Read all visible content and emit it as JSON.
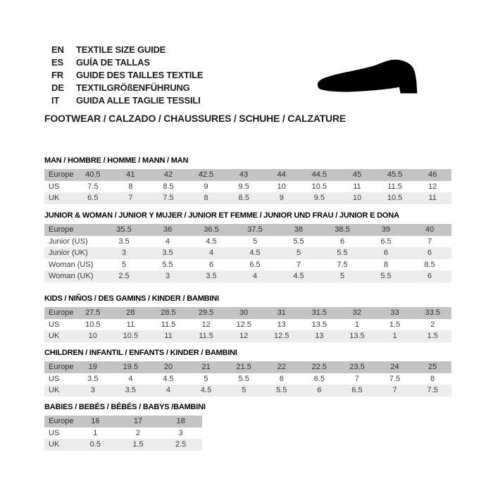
{
  "header": {
    "languages": [
      {
        "code": "EN",
        "text": "TEXTILE SIZE GUIDE"
      },
      {
        "code": "ES",
        "text": "GUÍA DE TALLAS"
      },
      {
        "code": "FR",
        "text": "GUIDE DES TAILLES TEXTILE"
      },
      {
        "code": "DE",
        "text": "TEXTILGRÖßENFÜHRUNG"
      },
      {
        "code": "IT",
        "text": "GUIDA ALLE TAGLIE TESSILI"
      }
    ],
    "shoe_icon": "dress-shoe-silhouette",
    "category_heading": "FOOTWEAR / CALZADO / CHAUSSURES / SCHUHE / CALZATURE"
  },
  "colors": {
    "table_header_row_bg": "#c3c3c3",
    "table_stripe_row_bg": "#ececec",
    "table_white_row_bg": "#ffffff",
    "text": "#1d1d1b",
    "shoe_fill": "#000000"
  },
  "tables": [
    {
      "id": "man",
      "title": "MAN / HOMBRE / HOMME / MANN / MAN",
      "rows": [
        {
          "label": "Europe",
          "header": true,
          "values": [
            "40.5",
            "41",
            "42",
            "42.5",
            "43",
            "44",
            "44.5",
            "45",
            "45.5",
            "46"
          ]
        },
        {
          "label": "US",
          "header": false,
          "values": [
            "7.5",
            "8",
            "8.5",
            "9",
            "9.5",
            "10",
            "10.5",
            "11",
            "11.5",
            "12"
          ]
        },
        {
          "label": "UK",
          "header": false,
          "values": [
            "6.5",
            "7",
            "7.5",
            "8",
            "8.5",
            "9",
            "9.5",
            "10",
            "10.5",
            "11"
          ]
        }
      ]
    },
    {
      "id": "junior",
      "title": "JUNIOR & WOMAN / JUNIOR Y MUJER / JUNIOR ET FEMME / JUNIOR UND FRAU / JUNIOR E DONA",
      "rows": [
        {
          "label": "Europe",
          "header": true,
          "values": [
            "35.5",
            "36",
            "36.5",
            "37.5",
            "38",
            "38.5",
            "39",
            "40"
          ]
        },
        {
          "label": "Junior (US)",
          "header": false,
          "values": [
            "3.5",
            "4",
            "4.5",
            "5",
            "5.5",
            "6",
            "6.5",
            "7"
          ]
        },
        {
          "label": "Junior (UK)",
          "header": false,
          "values": [
            "3",
            "3.5",
            "4",
            "4.5",
            "5",
            "5.5",
            "6",
            "6"
          ]
        },
        {
          "label": "Woman (US)",
          "header": false,
          "values": [
            "5",
            "5.5",
            "6",
            "6.5",
            "7",
            "7.5",
            "8",
            "8.5"
          ]
        },
        {
          "label": "Woman (UK)",
          "header": false,
          "values": [
            "2.5",
            "3",
            "3.5",
            "4",
            "4.5",
            "5",
            "5.5",
            "6"
          ]
        }
      ]
    },
    {
      "id": "kids",
      "title": "KIDS / NIÑOS / DES GAMINS / KINDER / BAMBINI",
      "rows": [
        {
          "label": "Europe",
          "header": true,
          "values": [
            "27.5",
            "28",
            "28.5",
            "29.5",
            "30",
            "31",
            "31.5",
            "32",
            "33",
            "33.5"
          ]
        },
        {
          "label": "US",
          "header": false,
          "values": [
            "10.5",
            "11",
            "11.5",
            "12",
            "12.5",
            "13",
            "13.5",
            "1",
            "1.5",
            "2"
          ]
        },
        {
          "label": "UK",
          "header": false,
          "values": [
            "10",
            "10.5",
            "11",
            "11.5",
            "12",
            "12.5",
            "13",
            "13.5",
            "1",
            "1.5"
          ]
        }
      ]
    },
    {
      "id": "children",
      "title": "CHILDREN / INFANTIL / ENFANTS / KINDER / BAMBINI",
      "rows": [
        {
          "label": "Europe",
          "header": true,
          "values": [
            "19",
            "19.5",
            "20",
            "21",
            "21.5",
            "22",
            "22.5",
            "23.5",
            "24",
            "25"
          ]
        },
        {
          "label": "US",
          "header": false,
          "values": [
            "3.5",
            "4",
            "4.5",
            "5",
            "5.5",
            "6",
            "6.5",
            "7",
            "7.5",
            "8"
          ]
        },
        {
          "label": "UK",
          "header": false,
          "values": [
            "3",
            "3.5",
            "4",
            "4.5",
            "5",
            "5.5",
            "6",
            "6.5",
            "7",
            "7.5"
          ]
        }
      ]
    },
    {
      "id": "babies",
      "title": "BABIES / BEBÉS / BÉBÉS / BABYS /BAMBINI",
      "rows": [
        {
          "label": "Europe",
          "header": true,
          "values": [
            "16",
            "17",
            "18"
          ]
        },
        {
          "label": "US",
          "header": false,
          "values": [
            "1",
            "2",
            "3"
          ]
        },
        {
          "label": "UK",
          "header": false,
          "values": [
            "0.5",
            "1.5",
            "2.5"
          ]
        }
      ]
    }
  ]
}
